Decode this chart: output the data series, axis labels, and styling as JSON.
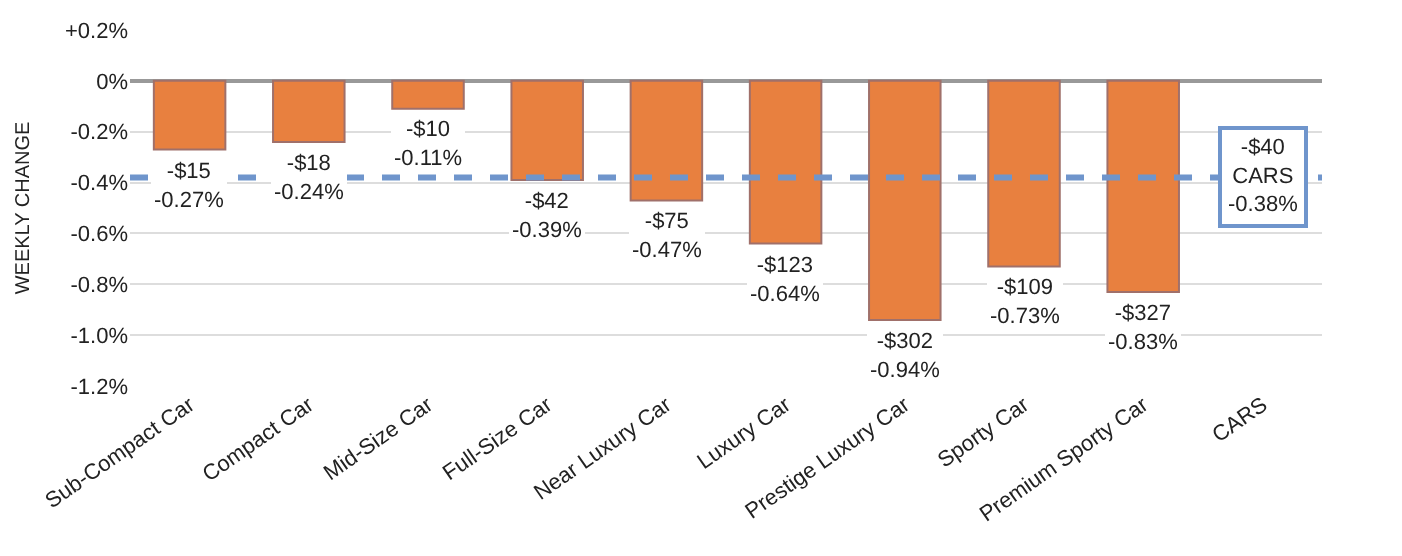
{
  "chart_data": {
    "type": "bar",
    "ylabel": "WEEKLY CHANGE",
    "categories": [
      "Sub-Compact Car",
      "Compact Car",
      "Mid-Size Car",
      "Full-Size Car",
      "Near Luxury Car",
      "Luxury Car",
      "Prestige Luxury Car",
      "Sporty Car",
      "Premium Sporty Car",
      "CARS"
    ],
    "values": [
      -0.27,
      -0.24,
      -0.11,
      -0.39,
      -0.47,
      -0.64,
      -0.94,
      -0.73,
      -0.83,
      null
    ],
    "value_labels": [
      "-$15\n-0.27%",
      "-$18\n-0.24%",
      "-$10\n-0.11%",
      "-$42\n-0.39%",
      "-$75\n-0.47%",
      "-$123\n-0.64%",
      "-$302\n-0.94%",
      "-$109\n-0.73%",
      "-$327\n-0.83%",
      null
    ],
    "color": "#e8803f",
    "ylim": [
      -1.2,
      0.2
    ],
    "yticks": [
      {
        "value": 0.2,
        "label": "+0.2%"
      },
      {
        "value": 0,
        "label": "0%"
      },
      {
        "value": -0.2,
        "label": "-0.2%"
      },
      {
        "value": -0.4,
        "label": "-0.4%"
      },
      {
        "value": -0.6,
        "label": "-0.6%"
      },
      {
        "value": -0.8,
        "label": "-0.8%"
      },
      {
        "value": -1.0,
        "label": "-1.0%"
      },
      {
        "value": -1.2,
        "label": "-1.2%"
      }
    ],
    "grid": "y",
    "ref_lines": [
      {
        "axis": "y",
        "value": -0.38,
        "label": "-$40\nCARS\n-0.38%",
        "color": "#6f95cc",
        "line_style": "dashed"
      }
    ]
  }
}
